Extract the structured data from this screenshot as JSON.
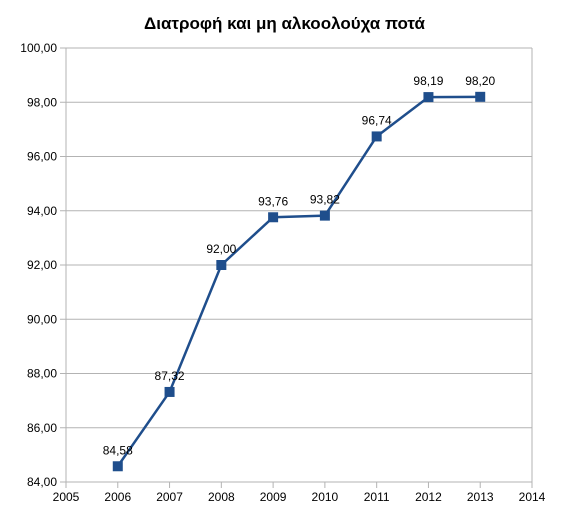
{
  "chart_data": {
    "type": "line",
    "title": "Διατροφή και μη αλκοολούχα ποτά",
    "xlabel": "",
    "ylabel": "",
    "xlim": [
      2005,
      2014
    ],
    "ylim": [
      84,
      100
    ],
    "x_ticks": [
      "2005",
      "2006",
      "2007",
      "2008",
      "2009",
      "2010",
      "2011",
      "2012",
      "2013",
      "2014"
    ],
    "y_ticks": [
      "84,00",
      "86,00",
      "88,00",
      "90,00",
      "92,00",
      "94,00",
      "96,00",
      "98,00",
      "100,00"
    ],
    "grid": "horizontal",
    "legend": "none",
    "series_color": "#1f4e8c",
    "series": [
      {
        "x": [
          2006,
          2007,
          2008,
          2009,
          2010,
          2011,
          2012,
          2013
        ],
        "values": [
          84.58,
          87.32,
          92.0,
          93.76,
          93.82,
          96.74,
          98.19,
          98.2
        ],
        "labels": [
          "84,58",
          "87,32",
          "92,00",
          "93,76",
          "93,82",
          "96,74",
          "98,19",
          "98,20"
        ]
      }
    ]
  }
}
